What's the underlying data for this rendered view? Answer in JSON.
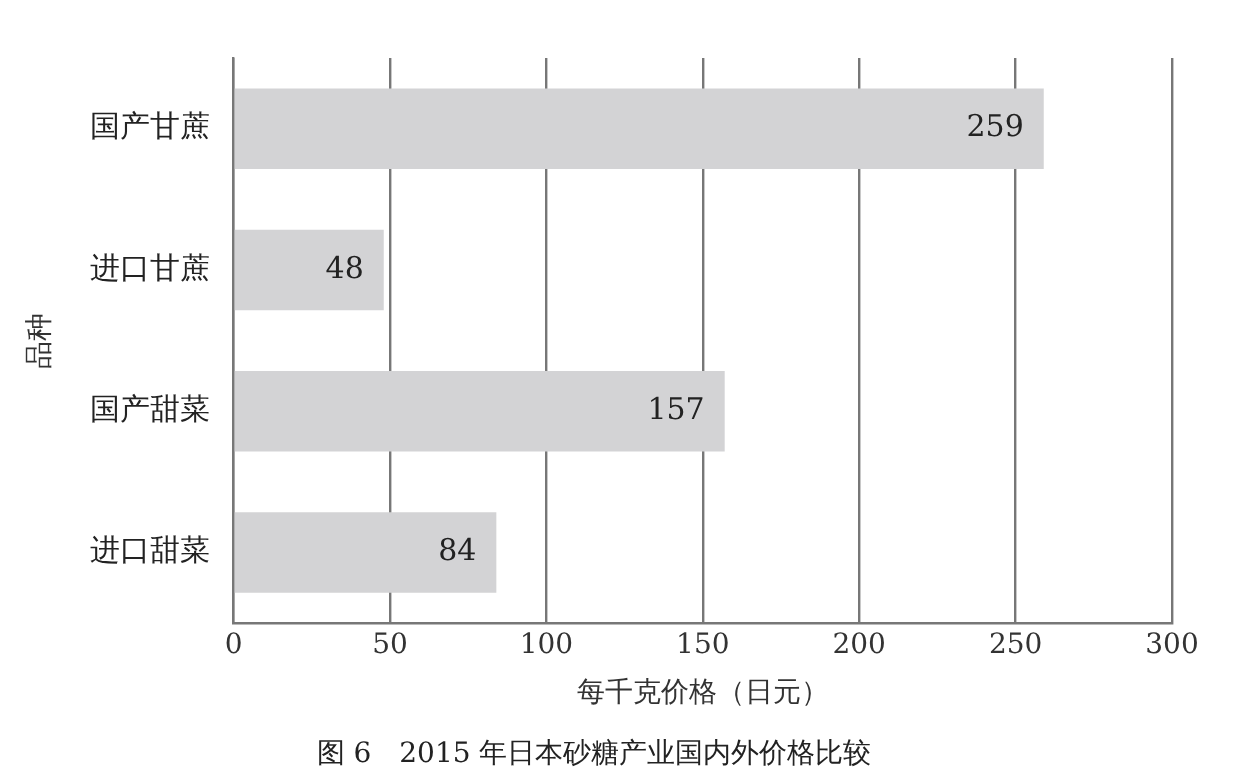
{
  "chart_data": {
    "type": "bar",
    "orientation": "horizontal",
    "title": "图 6　2015 年日本砂糖产业国内外价格比较",
    "xlabel": "每千克价格（日元）",
    "ylabel": "品种",
    "categories": [
      "国产甘蔗",
      "进口甘蔗",
      "国产甜菜",
      "进口甜菜"
    ],
    "values": [
      259,
      48,
      157,
      84
    ],
    "color": "#d3d3d5",
    "xlim": [
      0,
      300
    ],
    "xticks": [
      0,
      50,
      100,
      150,
      200,
      250,
      300
    ],
    "grid": "x",
    "data_labels": true
  }
}
